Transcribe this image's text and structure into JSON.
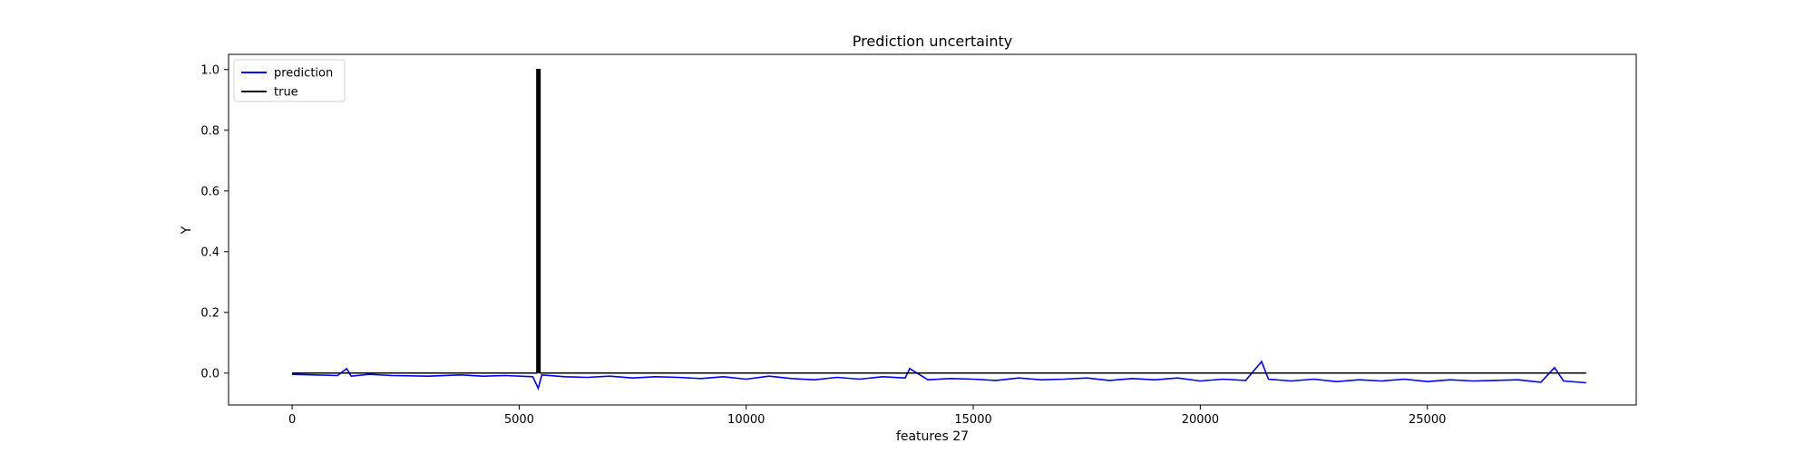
{
  "chart_data": {
    "type": "line",
    "title": "Prediction uncertainty",
    "xlabel": "features 27",
    "ylabel": "Y",
    "xlim": [
      -1400,
      29600
    ],
    "ylim": [
      -0.105,
      1.05
    ],
    "xticks": [
      0,
      5000,
      10000,
      15000,
      20000,
      25000
    ],
    "yticks": [
      0.0,
      0.2,
      0.4,
      0.6,
      0.8,
      1.0
    ],
    "xtick_labels": [
      "0",
      "5000",
      "10000",
      "15000",
      "20000",
      "25000"
    ],
    "ytick_labels": [
      "0.0",
      "0.2",
      "0.4",
      "0.6",
      "0.8",
      "1.0"
    ],
    "grid": false,
    "legend_position": "upper-left",
    "series": [
      {
        "name": "prediction",
        "color": "#0000ff",
        "x": [
          0,
          500,
          1000,
          1200,
          1300,
          1700,
          2200,
          3000,
          3700,
          4200,
          4700,
          5300,
          5420,
          5500,
          6000,
          6500,
          7000,
          7500,
          8000,
          8500,
          9000,
          9500,
          10000,
          10500,
          11000,
          11500,
          12000,
          12500,
          13000,
          13500,
          13600,
          14000,
          14500,
          15000,
          15500,
          16000,
          16500,
          17000,
          17500,
          18000,
          18500,
          19000,
          19500,
          20000,
          20500,
          21000,
          21350,
          21500,
          22000,
          22500,
          23000,
          23500,
          24000,
          24500,
          25000,
          25500,
          26000,
          26500,
          27000,
          27500,
          27800,
          28000,
          28500
        ],
        "y": [
          -0.004,
          -0.006,
          -0.008,
          0.015,
          -0.01,
          -0.004,
          -0.008,
          -0.01,
          -0.006,
          -0.01,
          -0.008,
          -0.012,
          -0.05,
          -0.006,
          -0.012,
          -0.014,
          -0.01,
          -0.016,
          -0.012,
          -0.014,
          -0.018,
          -0.012,
          -0.02,
          -0.01,
          -0.018,
          -0.022,
          -0.014,
          -0.02,
          -0.012,
          -0.016,
          0.015,
          -0.022,
          -0.018,
          -0.02,
          -0.024,
          -0.016,
          -0.022,
          -0.02,
          -0.016,
          -0.024,
          -0.018,
          -0.022,
          -0.016,
          -0.026,
          -0.02,
          -0.024,
          0.038,
          -0.02,
          -0.026,
          -0.02,
          -0.028,
          -0.022,
          -0.026,
          -0.02,
          -0.028,
          -0.022,
          -0.026,
          -0.024,
          -0.022,
          -0.03,
          0.018,
          -0.026,
          -0.032
        ]
      },
      {
        "name": "true",
        "color": "#000000",
        "x": [
          0,
          5390,
          5390,
          5460,
          5460,
          28500
        ],
        "y": [
          0,
          0,
          1.0,
          1.0,
          0,
          0
        ]
      }
    ]
  }
}
